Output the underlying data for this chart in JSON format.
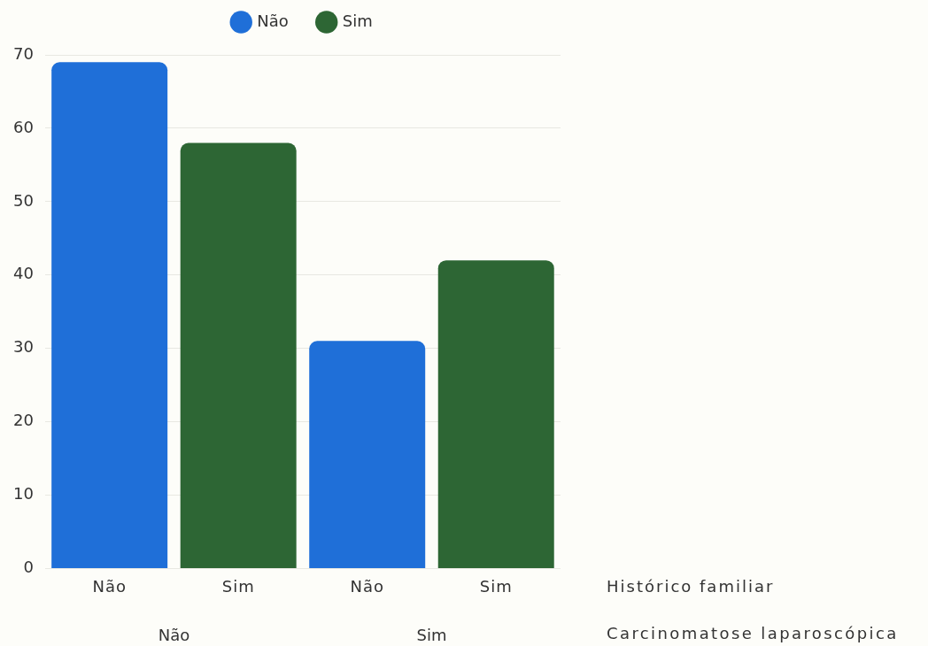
{
  "chart_data": {
    "type": "bar",
    "categories": [
      "Não",
      "Sim"
    ],
    "xlabel": "Carcinomatose laparoscópica",
    "annotations": [
      "Histórico familiar"
    ],
    "series": [
      {
        "name": "Não",
        "color": "#1f6fd8",
        "values": [
          69,
          31
        ]
      },
      {
        "name": "Sim",
        "color": "#2d6634",
        "values": [
          58,
          42
        ]
      }
    ],
    "ylim": [
      0,
      70
    ],
    "yticks": [
      0,
      10,
      20,
      30,
      40,
      50,
      60,
      70
    ],
    "grid": "y",
    "legend": "top"
  }
}
